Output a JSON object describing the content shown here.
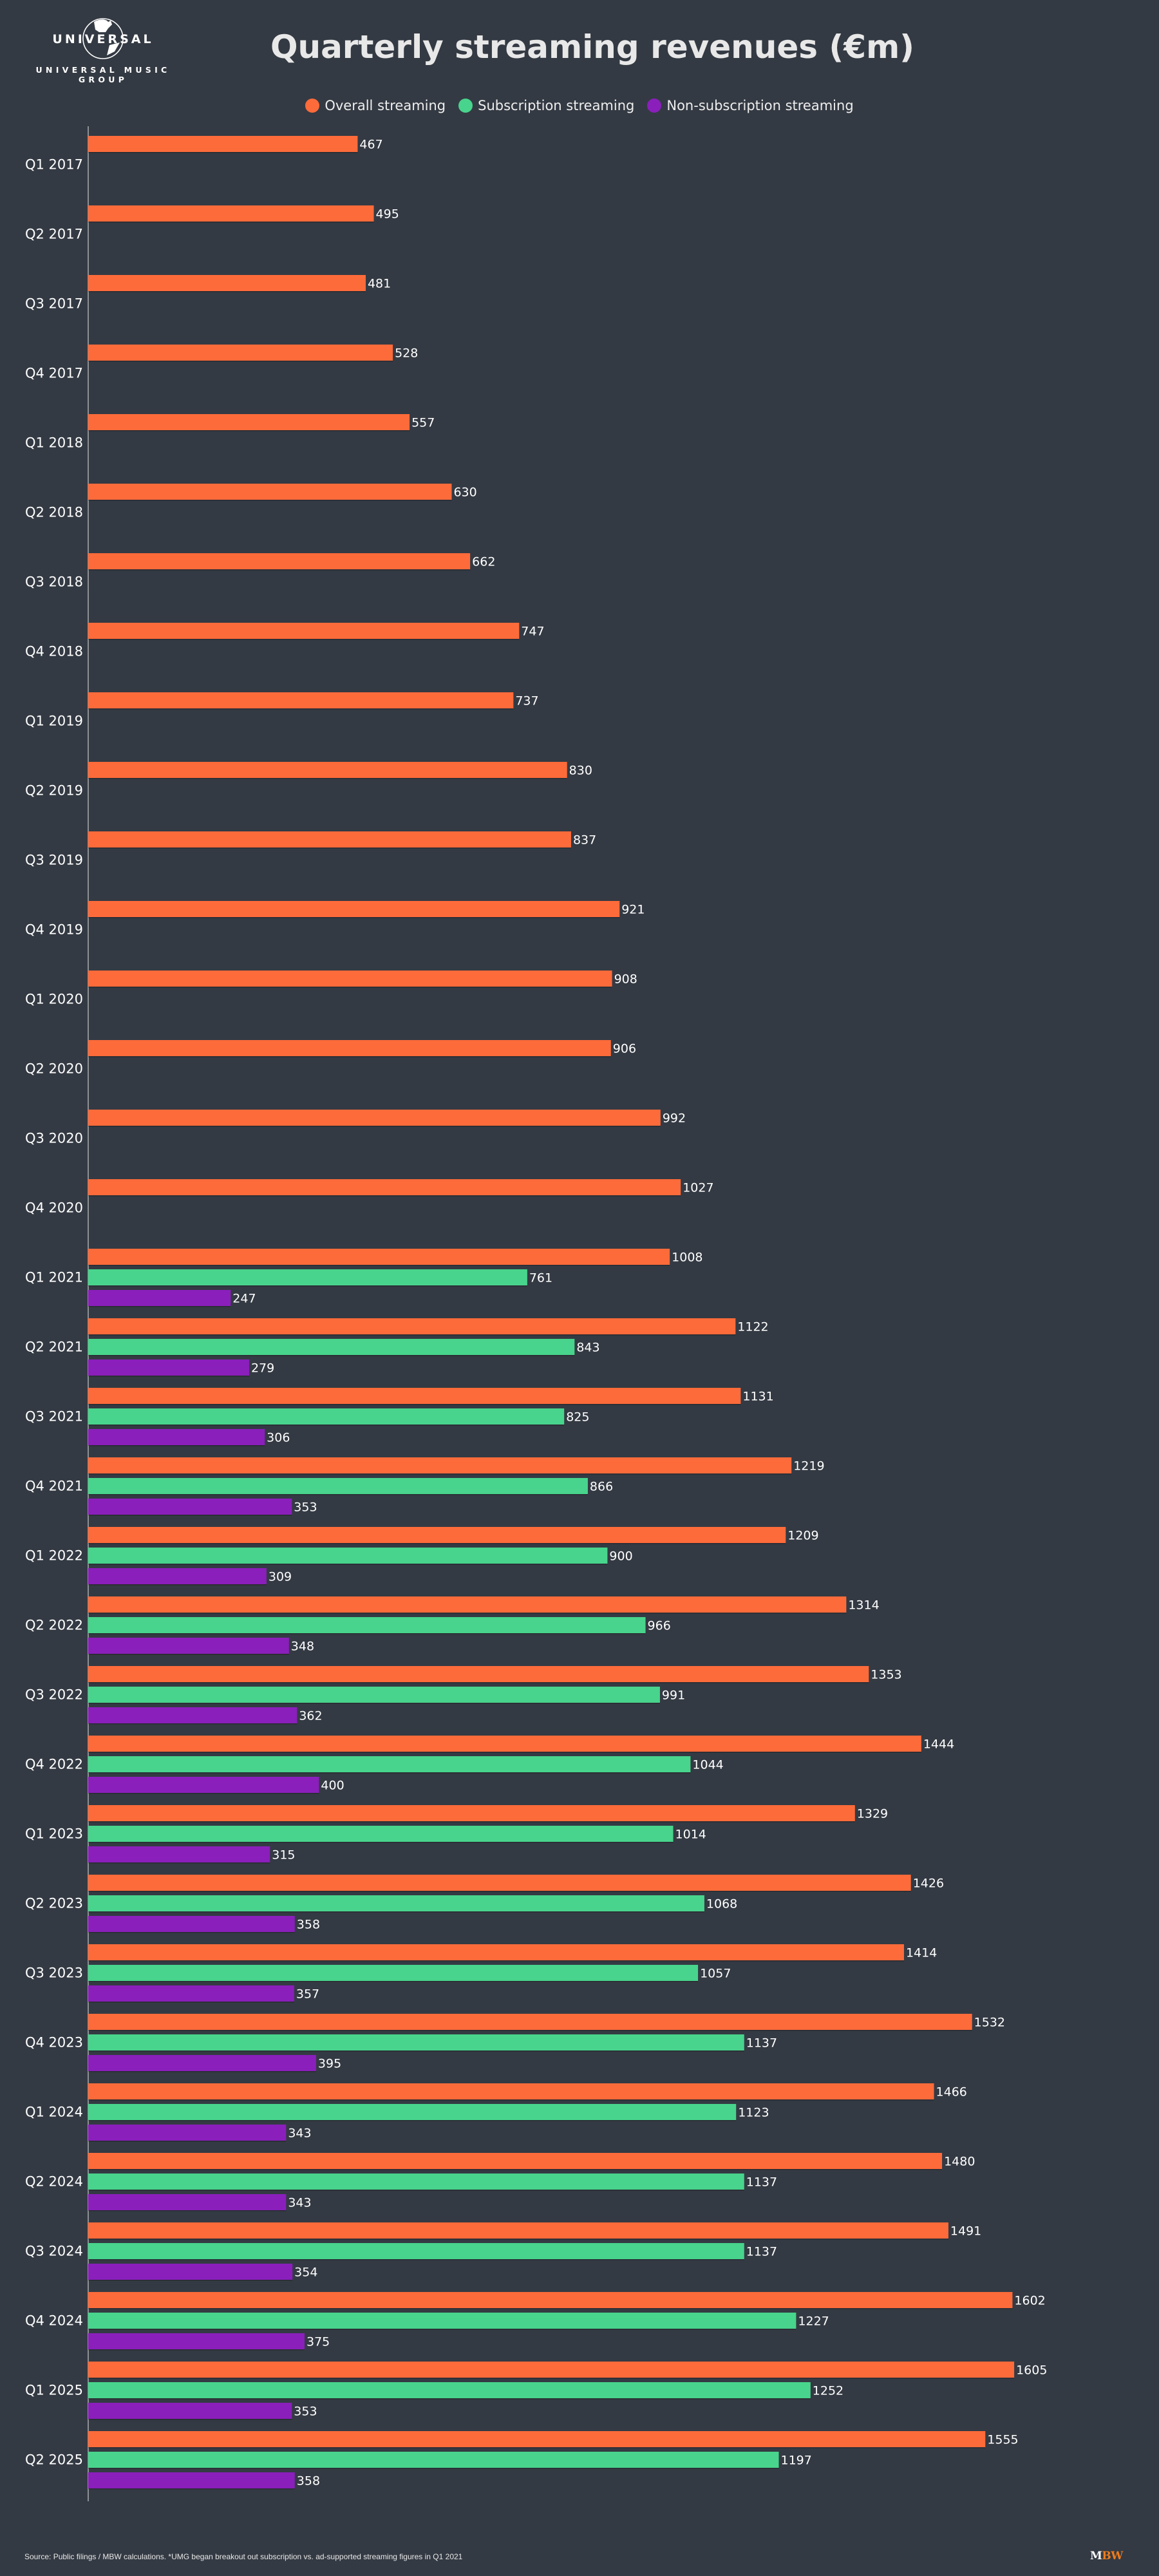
{
  "header": {
    "logo_word": "UNIVERSAL",
    "logo_subtitle": "UNIVERSAL MUSIC GROUP",
    "title": "Quarterly streaming revenues (€m)"
  },
  "footer": {
    "source": "Source: Public filings / MBW calculations. *UMG began breakout out subscription vs. ad-supported streaming figures in Q1 2021",
    "brand_m": "M",
    "brand_bw": "BW"
  },
  "colors": {
    "background": "#343a43",
    "overall": "#fe6b3a",
    "subscription": "#48d48c",
    "non_subscription": "#8a1fbb",
    "text": "#ffffff",
    "axis": "#c8c8c8"
  },
  "chart_data": {
    "type": "bar",
    "orientation": "horizontal",
    "title": "Quarterly streaming revenues (€m)",
    "xlabel": "",
    "ylabel": "",
    "xlim": [
      0,
      1700
    ],
    "grid": false,
    "legend_position": "top-center",
    "categories": [
      "Q1 2017",
      "Q2 2017",
      "Q3 2017",
      "Q4 2017",
      "Q1 2018",
      "Q2 2018",
      "Q3 2018",
      "Q4 2018",
      "Q1 2019",
      "Q2 2019",
      "Q3 2019",
      "Q4 2019",
      "Q1 2020",
      "Q2 2020",
      "Q3 2020",
      "Q4 2020",
      "Q1 2021",
      "Q2 2021",
      "Q3 2021",
      "Q4 2021",
      "Q1 2022",
      "Q2 2022",
      "Q3 2022",
      "Q4 2022",
      "Q1 2023",
      "Q2 2023",
      "Q3 2023",
      "Q4 2023",
      "Q1 2024",
      "Q2 2024",
      "Q3 2024",
      "Q4 2024",
      "Q1 2025",
      "Q2 2025"
    ],
    "series": [
      {
        "name": "Overall streaming",
        "color": "#fe6b3a",
        "values": [
          467,
          495,
          481,
          528,
          557,
          630,
          662,
          747,
          737,
          830,
          837,
          921,
          908,
          906,
          992,
          1027,
          1008,
          1122,
          1131,
          1219,
          1209,
          1314,
          1353,
          1444,
          1329,
          1426,
          1414,
          1532,
          1466,
          1480,
          1491,
          1602,
          1605,
          1555
        ]
      },
      {
        "name": "Subscription streaming",
        "color": "#48d48c",
        "values": [
          null,
          null,
          null,
          null,
          null,
          null,
          null,
          null,
          null,
          null,
          null,
          null,
          null,
          null,
          null,
          null,
          761,
          843,
          825,
          866,
          900,
          966,
          991,
          1044,
          1014,
          1068,
          1057,
          1137,
          1123,
          1137,
          1137,
          1227,
          1252,
          1197
        ]
      },
      {
        "name": "Non-subscription streaming",
        "color": "#8a1fbb",
        "values": [
          null,
          null,
          null,
          null,
          null,
          null,
          null,
          null,
          null,
          null,
          null,
          null,
          null,
          null,
          null,
          null,
          247,
          279,
          306,
          353,
          309,
          348,
          362,
          400,
          315,
          358,
          357,
          395,
          343,
          343,
          354,
          375,
          353,
          358
        ]
      }
    ]
  }
}
